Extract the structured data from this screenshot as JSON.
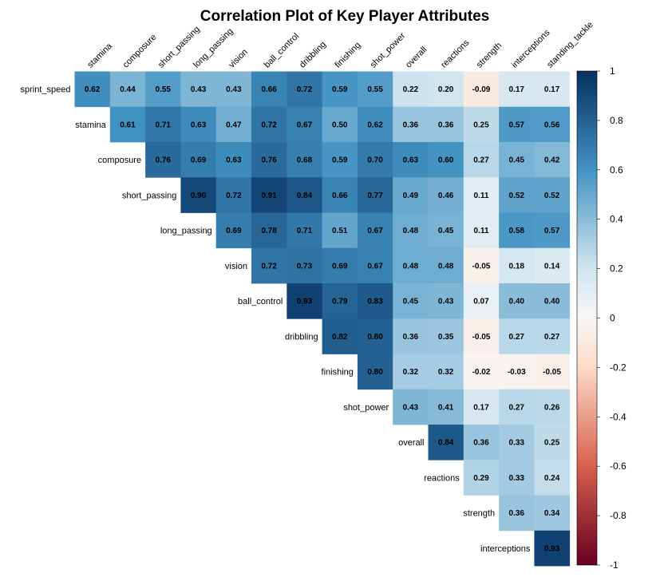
{
  "chart_data": {
    "type": "heatmap",
    "title": "Correlation Plot of Key Player Attributes",
    "layout": "upper-triangle",
    "row_labels": [
      "sprint_speed",
      "stamina",
      "composure",
      "short_passing",
      "long_passing",
      "vision",
      "ball_control",
      "dribbling",
      "finishing",
      "shot_power",
      "overall",
      "reactions",
      "strength",
      "interceptions"
    ],
    "col_labels": [
      "stamina",
      "composure",
      "short_passing",
      "long_passing",
      "vision",
      "ball_control",
      "dribbling",
      "finishing",
      "shot_power",
      "overall",
      "reactions",
      "strength",
      "interceptions",
      "standing_tackle"
    ],
    "values": [
      [
        0.62,
        0.44,
        0.55,
        0.43,
        0.43,
        0.66,
        0.72,
        0.59,
        0.55,
        0.22,
        0.2,
        -0.09,
        0.17,
        0.17
      ],
      [
        0.61,
        0.71,
        0.63,
        0.47,
        0.72,
        0.67,
        0.5,
        0.62,
        0.36,
        0.36,
        0.25,
        0.57,
        0.56
      ],
      [
        0.76,
        0.69,
        0.63,
        0.76,
        0.68,
        0.59,
        0.7,
        0.63,
        0.6,
        0.27,
        0.45,
        0.42
      ],
      [
        0.9,
        0.72,
        0.91,
        0.84,
        0.66,
        0.77,
        0.49,
        0.46,
        0.11,
        0.52,
        0.52
      ],
      [
        0.69,
        0.78,
        0.71,
        0.51,
        0.67,
        0.48,
        0.45,
        0.11,
        0.58,
        0.57
      ],
      [
        0.72,
        0.73,
        0.69,
        0.67,
        0.48,
        0.48,
        -0.05,
        0.18,
        0.14
      ],
      [
        0.93,
        0.79,
        0.83,
        0.45,
        0.43,
        0.07,
        0.4,
        0.4
      ],
      [
        0.82,
        0.8,
        0.36,
        0.35,
        -0.05,
        0.27,
        0.27
      ],
      [
        0.8,
        0.32,
        0.32,
        -0.02,
        -0.03,
        -0.05
      ],
      [
        0.43,
        0.41,
        0.17,
        0.27,
        0.26
      ],
      [
        0.84,
        0.36,
        0.33,
        0.25
      ],
      [
        0.29,
        0.33,
        0.24
      ],
      [
        0.36,
        0.34
      ],
      [
        0.93
      ]
    ],
    "colorbar": {
      "range": [
        -1,
        1
      ],
      "ticks": [
        "1",
        "0.8",
        "0.6",
        "0.4",
        "0.2",
        "0",
        "-0.2",
        "-0.4",
        "-0.6",
        "-0.8",
        "-1"
      ],
      "colors": {
        "neg_strong": "#67001F",
        "neg_mid": "#D6604D",
        "neg_light": "#FDDBC7",
        "zero": "#F7F7F7",
        "pos_light": "#D1E5F0",
        "pos_mid": "#4393C3",
        "pos_strong": "#053061"
      }
    },
    "grid": false,
    "legend": "right"
  }
}
